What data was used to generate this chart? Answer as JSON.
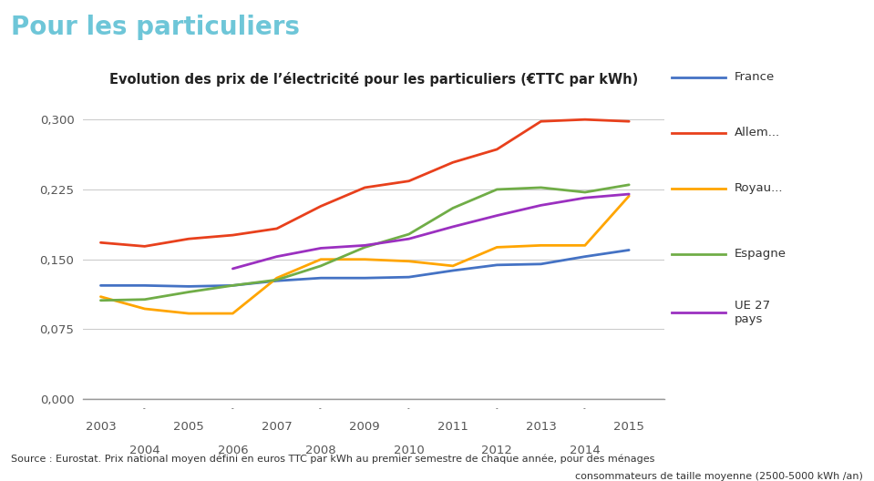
{
  "title": "Evolution des prix de l’électricité pour les particuliers (€TTC par kWh)",
  "header": "Pour les particuliers",
  "source_line1": "Source : Eurostat. Prix national moyen défini en euros TTC par kWh au premier semestre de chaque année, pour des ménages",
  "source_line2": "consommateurs de taille moyenne (2500-5000 kWh /an)",
  "years": [
    2003,
    2004,
    2005,
    2006,
    2007,
    2008,
    2009,
    2010,
    2011,
    2012,
    2013,
    2014,
    2015
  ],
  "series": {
    "France": {
      "color": "#4472C4",
      "values": [
        0.122,
        0.122,
        0.121,
        0.122,
        0.127,
        0.13,
        0.13,
        0.131,
        0.138,
        0.144,
        0.145,
        0.153,
        0.16
      ]
    },
    "Allem...": {
      "color": "#E8401C",
      "values": [
        0.168,
        0.164,
        0.172,
        0.176,
        0.183,
        0.207,
        0.227,
        0.234,
        0.254,
        0.268,
        0.298,
        0.3,
        0.298
      ]
    },
    "Royau...": {
      "color": "#FFA500",
      "values": [
        0.11,
        0.097,
        0.092,
        0.092,
        0.13,
        0.15,
        0.15,
        0.148,
        0.143,
        0.163,
        0.165,
        0.165,
        0.218
      ]
    },
    "Espagne": {
      "color": "#70AD47",
      "values": [
        0.106,
        0.107,
        0.115,
        0.122,
        0.128,
        0.143,
        0.163,
        0.177,
        0.205,
        0.225,
        0.227,
        0.222,
        0.23
      ]
    },
    "UE 27\npays": {
      "color": "#9B30C0",
      "values": [
        null,
        null,
        null,
        0.14,
        0.153,
        0.162,
        0.165,
        0.172,
        0.185,
        0.197,
        0.208,
        0.216,
        0.22
      ]
    }
  },
  "ylim": [
    0,
    0.325
  ],
  "yticks": [
    0.0,
    0.075,
    0.15,
    0.225,
    0.3
  ],
  "xlim": [
    2002.6,
    2015.8
  ],
  "background_color": "#FFFFFF",
  "header_color": "#6EC6D8",
  "title_fontsize": 10.5,
  "header_fontsize": 20,
  "tick_color": "#555555",
  "grid_color": "#CCCCCC",
  "axis_color": "#999999"
}
